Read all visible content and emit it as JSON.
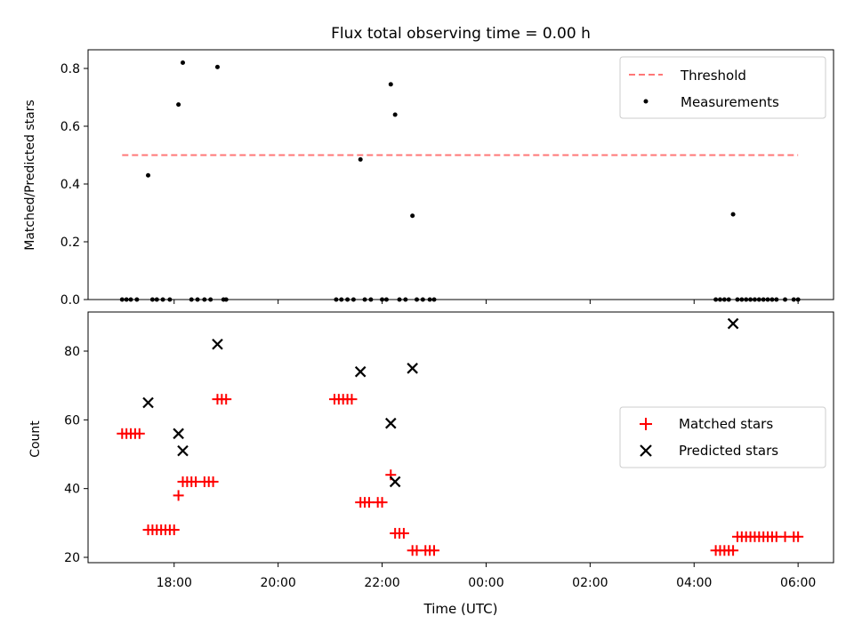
{
  "chart_data": [
    {
      "type": "scatter",
      "title": "Flux total observing time = 0.00 h",
      "xlabel": "",
      "ylabel": "Matched/Predicted stars",
      "ylim": [
        0,
        0.86
      ],
      "yticks": [
        0.0,
        0.2,
        0.4,
        0.6,
        0.8
      ],
      "ytick_labels": [
        "0.0",
        "0.2",
        "0.4",
        "0.6",
        "0.8"
      ],
      "x_unit": "hours since 17:00 UTC",
      "threshold": {
        "name": "Threshold",
        "value": 0.5,
        "x_range": [
          "17:00",
          "06:00"
        ],
        "color": "#ff7777"
      },
      "series": [
        {
          "name": "Measurements",
          "color": "#000000",
          "points": [
            {
              "x": "17:00",
              "y": 0
            },
            {
              "x": "17:05",
              "y": 0
            },
            {
              "x": "17:10",
              "y": 0
            },
            {
              "x": "17:17",
              "y": 0
            },
            {
              "x": "17:30",
              "y": 0.43
            },
            {
              "x": "17:35",
              "y": 0
            },
            {
              "x": "17:40",
              "y": 0
            },
            {
              "x": "17:47",
              "y": 0
            },
            {
              "x": "17:55",
              "y": 0
            },
            {
              "x": "18:05",
              "y": 0.675
            },
            {
              "x": "18:10",
              "y": 0.82
            },
            {
              "x": "18:20",
              "y": 0
            },
            {
              "x": "18:27",
              "y": 0
            },
            {
              "x": "18:35",
              "y": 0
            },
            {
              "x": "18:42",
              "y": 0
            },
            {
              "x": "18:50",
              "y": 0.805
            },
            {
              "x": "18:57",
              "y": 0
            },
            {
              "x": "19:00",
              "y": 0
            },
            {
              "x": "21:07",
              "y": 0
            },
            {
              "x": "21:13",
              "y": 0
            },
            {
              "x": "21:20",
              "y": 0
            },
            {
              "x": "21:27",
              "y": 0
            },
            {
              "x": "21:35",
              "y": 0.485
            },
            {
              "x": "21:40",
              "y": 0
            },
            {
              "x": "21:47",
              "y": 0
            },
            {
              "x": "22:00",
              "y": 0
            },
            {
              "x": "22:05",
              "y": 0
            },
            {
              "x": "22:10",
              "y": 0.745
            },
            {
              "x": "22:15",
              "y": 0.64
            },
            {
              "x": "22:20",
              "y": 0
            },
            {
              "x": "22:27",
              "y": 0
            },
            {
              "x": "22:35",
              "y": 0.29
            },
            {
              "x": "22:40",
              "y": 0
            },
            {
              "x": "22:47",
              "y": 0
            },
            {
              "x": "22:55",
              "y": 0
            },
            {
              "x": "23:00",
              "y": 0
            },
            {
              "x": "04:25",
              "y": 0
            },
            {
              "x": "04:30",
              "y": 0
            },
            {
              "x": "04:35",
              "y": 0
            },
            {
              "x": "04:40",
              "y": 0
            },
            {
              "x": "04:45",
              "y": 0.295
            },
            {
              "x": "04:50",
              "y": 0
            },
            {
              "x": "04:55",
              "y": 0
            },
            {
              "x": "05:00",
              "y": 0
            },
            {
              "x": "05:05",
              "y": 0
            },
            {
              "x": "05:10",
              "y": 0
            },
            {
              "x": "05:15",
              "y": 0
            },
            {
              "x": "05:20",
              "y": 0
            },
            {
              "x": "05:25",
              "y": 0
            },
            {
              "x": "05:30",
              "y": 0
            },
            {
              "x": "05:35",
              "y": 0
            },
            {
              "x": "05:45",
              "y": 0
            },
            {
              "x": "05:55",
              "y": 0
            },
            {
              "x": "06:00",
              "y": 0
            }
          ]
        }
      ],
      "legend": {
        "position": "upper right",
        "entries": [
          "Threshold",
          "Measurements"
        ]
      }
    },
    {
      "type": "scatter",
      "title": "",
      "xlabel": "Time (UTC)",
      "ylabel": "Count",
      "ylim": [
        19,
        92
      ],
      "yticks": [
        20,
        40,
        60,
        80
      ],
      "ytick_labels": [
        "20",
        "40",
        "60",
        "80"
      ],
      "xticks": [
        "18:00",
        "20:00",
        "22:00",
        "00:00",
        "02:00",
        "04:00",
        "06:00"
      ],
      "series": [
        {
          "name": "Matched stars",
          "color": "#ff0000",
          "marker": "plus",
          "points": [
            {
              "x": "17:00",
              "y": 56
            },
            {
              "x": "17:05",
              "y": 56
            },
            {
              "x": "17:10",
              "y": 56
            },
            {
              "x": "17:15",
              "y": 56
            },
            {
              "x": "17:20",
              "y": 56
            },
            {
              "x": "17:30",
              "y": 28
            },
            {
              "x": "17:35",
              "y": 28
            },
            {
              "x": "17:40",
              "y": 28
            },
            {
              "x": "17:45",
              "y": 28
            },
            {
              "x": "17:50",
              "y": 28
            },
            {
              "x": "17:55",
              "y": 28
            },
            {
              "x": "18:00",
              "y": 28
            },
            {
              "x": "18:05",
              "y": 38
            },
            {
              "x": "18:10",
              "y": 42
            },
            {
              "x": "18:15",
              "y": 42
            },
            {
              "x": "18:20",
              "y": 42
            },
            {
              "x": "18:25",
              "y": 42
            },
            {
              "x": "18:35",
              "y": 42
            },
            {
              "x": "18:40",
              "y": 42
            },
            {
              "x": "18:45",
              "y": 42
            },
            {
              "x": "18:50",
              "y": 66
            },
            {
              "x": "18:55",
              "y": 66
            },
            {
              "x": "19:00",
              "y": 66
            },
            {
              "x": "21:05",
              "y": 66
            },
            {
              "x": "21:10",
              "y": 66
            },
            {
              "x": "21:15",
              "y": 66
            },
            {
              "x": "21:20",
              "y": 66
            },
            {
              "x": "21:25",
              "y": 66
            },
            {
              "x": "21:35",
              "y": 36
            },
            {
              "x": "21:40",
              "y": 36
            },
            {
              "x": "21:45",
              "y": 36
            },
            {
              "x": "21:55",
              "y": 36
            },
            {
              "x": "22:00",
              "y": 36
            },
            {
              "x": "22:10",
              "y": 44
            },
            {
              "x": "22:15",
              "y": 27
            },
            {
              "x": "22:20",
              "y": 27
            },
            {
              "x": "22:25",
              "y": 27
            },
            {
              "x": "22:35",
              "y": 22
            },
            {
              "x": "22:40",
              "y": 22
            },
            {
              "x": "22:50",
              "y": 22
            },
            {
              "x": "22:55",
              "y": 22
            },
            {
              "x": "23:00",
              "y": 22
            },
            {
              "x": "04:25",
              "y": 22
            },
            {
              "x": "04:30",
              "y": 22
            },
            {
              "x": "04:35",
              "y": 22
            },
            {
              "x": "04:40",
              "y": 22
            },
            {
              "x": "04:45",
              "y": 22
            },
            {
              "x": "04:50",
              "y": 26
            },
            {
              "x": "04:55",
              "y": 26
            },
            {
              "x": "05:00",
              "y": 26
            },
            {
              "x": "05:05",
              "y": 26
            },
            {
              "x": "05:10",
              "y": 26
            },
            {
              "x": "05:15",
              "y": 26
            },
            {
              "x": "05:20",
              "y": 26
            },
            {
              "x": "05:25",
              "y": 26
            },
            {
              "x": "05:30",
              "y": 26
            },
            {
              "x": "05:35",
              "y": 26
            },
            {
              "x": "05:45",
              "y": 26
            },
            {
              "x": "05:55",
              "y": 26
            },
            {
              "x": "06:00",
              "y": 26
            }
          ]
        },
        {
          "name": "Predicted stars",
          "color": "#000000",
          "marker": "x",
          "points": [
            {
              "x": "17:30",
              "y": 65
            },
            {
              "x": "18:05",
              "y": 56
            },
            {
              "x": "18:10",
              "y": 51
            },
            {
              "x": "18:50",
              "y": 82
            },
            {
              "x": "21:35",
              "y": 74
            },
            {
              "x": "22:10",
              "y": 59
            },
            {
              "x": "22:15",
              "y": 42
            },
            {
              "x": "22:35",
              "y": 75
            },
            {
              "x": "04:45",
              "y": 88
            }
          ]
        }
      ],
      "legend": {
        "position": "right",
        "entries": [
          "Matched stars",
          "Predicted stars"
        ]
      }
    }
  ]
}
